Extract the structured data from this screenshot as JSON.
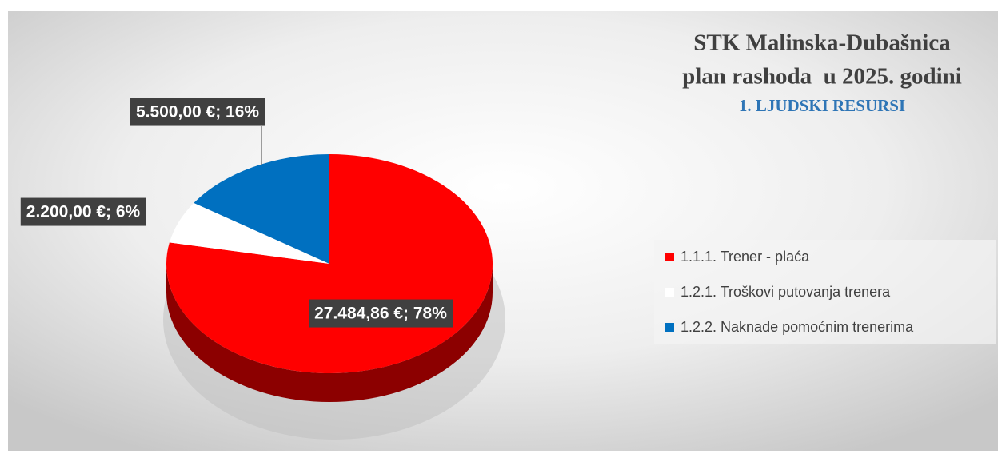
{
  "chart_data": {
    "type": "pie",
    "title": "STK Malinska-Dubašnica",
    "subtitle": "plan rashoda  u 2025. godini",
    "section": "1. LJUDSKI RESURSI",
    "categories": [
      "1.1.1. Trener - plaća",
      "1.2.1. Troškovi putovanja trenera",
      "1.2.2. Naknade pomoćnim trenerima"
    ],
    "values": [
      27484.86,
      2200,
      5500
    ],
    "value_labels": [
      "27.484,86 €; 78%",
      "2.200,00 €; 6%",
      "5.500,00 €; 16%"
    ],
    "colors": [
      "#ff0000",
      "#ffffff",
      "#0070c0"
    ],
    "legend": "right"
  }
}
